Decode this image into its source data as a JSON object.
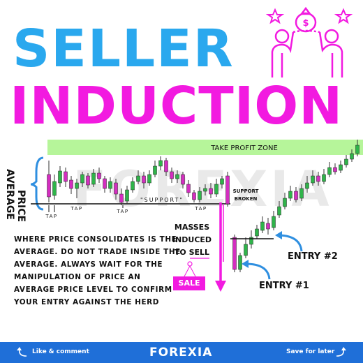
{
  "title": {
    "line1": "SELLER",
    "line2": "INDUCTION"
  },
  "chart": {
    "take_profit_label": "TAKE PROFIT ZONE",
    "price_average_label": [
      "PRICE",
      "AVERAGE"
    ],
    "support_label": "\"SUPPORT\"",
    "support_broken_label": [
      "SUPPORT",
      "BROKEN"
    ],
    "tap_labels": [
      "TAP",
      "TAP",
      "TAP",
      "TAP"
    ],
    "watermark": "FOREXIA"
  },
  "note": "WHERE PRICE CONSOLIDATES IS THE AVERAGE. DO NOT TRADE INSIDE THE AVERAGE. ALWAYS WAIT FOR THE MANIPULATION OF PRICE AN AVERAGE PRICE LEVEL TO CONFIRM YOUR ENTRY AGAINST THE HERD",
  "masses": [
    "MASSES",
    "INDUCED",
    "TO SELL"
  ],
  "sale_tag": "SALE",
  "entry2": "ENTRY #2",
  "entry1": "ENTRY #1",
  "footer": {
    "left": "Like & comment",
    "logo": "FOREXIA",
    "right": "Save for later"
  },
  "colors": {
    "blue_title": "#2aa8ee",
    "magenta": "#f21ae0",
    "green_zone": "#b6f59a",
    "footer": "#1f6fd8",
    "arrow": "#2f8fe0"
  },
  "icons": [
    "money-bag-icon",
    "star-icon",
    "people-handshake-icon",
    "curved-arrow-icon"
  ]
}
